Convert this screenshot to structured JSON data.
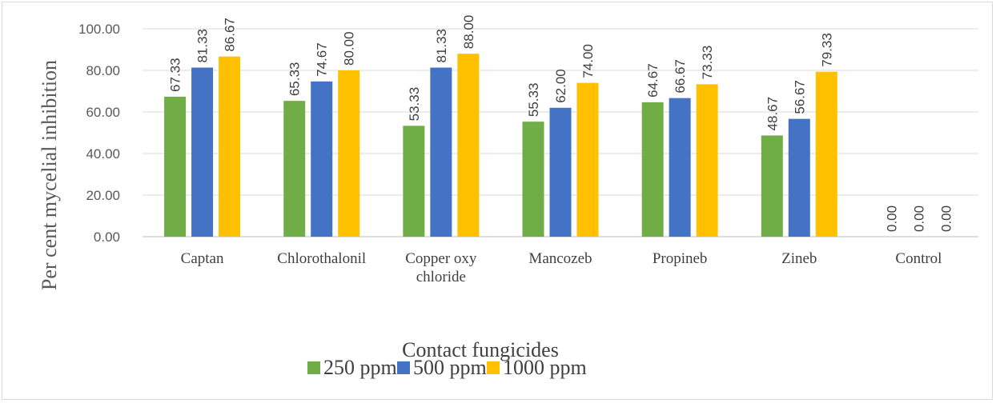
{
  "chart_data": {
    "type": "bar",
    "title": "",
    "xlabel": "Contact fungicides",
    "ylabel": "Per cent mycelial inhibition",
    "ylim": [
      0,
      100
    ],
    "yticks": [
      "0.00",
      "20.00",
      "40.00",
      "60.00",
      "80.00",
      "100.00"
    ],
    "categories": [
      [
        "Captan"
      ],
      [
        "Chlorothalonil"
      ],
      [
        "Copper oxy",
        "chloride"
      ],
      [
        "Mancozeb"
      ],
      [
        "Propineb"
      ],
      [
        "Zineb"
      ],
      [
        "Control"
      ]
    ],
    "series": [
      {
        "name": "250 ppm",
        "color": "#70ad47",
        "values": [
          67.33,
          65.33,
          53.33,
          55.33,
          64.67,
          48.67,
          0.0
        ],
        "labels": [
          "67.33",
          "65.33",
          "53.33",
          "55.33",
          "64.67",
          "48.67",
          "0.00"
        ]
      },
      {
        "name": "500 ppm",
        "color": "#4472c4",
        "values": [
          81.33,
          74.67,
          81.33,
          62.0,
          66.67,
          56.67,
          0.0
        ],
        "labels": [
          "81.33",
          "74.67",
          "81.33",
          "62.00",
          "66.67",
          "56.67",
          "0.00"
        ]
      },
      {
        "name": "1000 ppm",
        "color": "#ffc000",
        "values": [
          86.67,
          80.0,
          88.0,
          74.0,
          73.33,
          79.33,
          0.0
        ],
        "labels": [
          "86.67",
          "80.00",
          "88.00",
          "74.00",
          "73.33",
          "79.33",
          "0.00"
        ]
      }
    ],
    "grid": true,
    "legend_position": "bottom"
  }
}
